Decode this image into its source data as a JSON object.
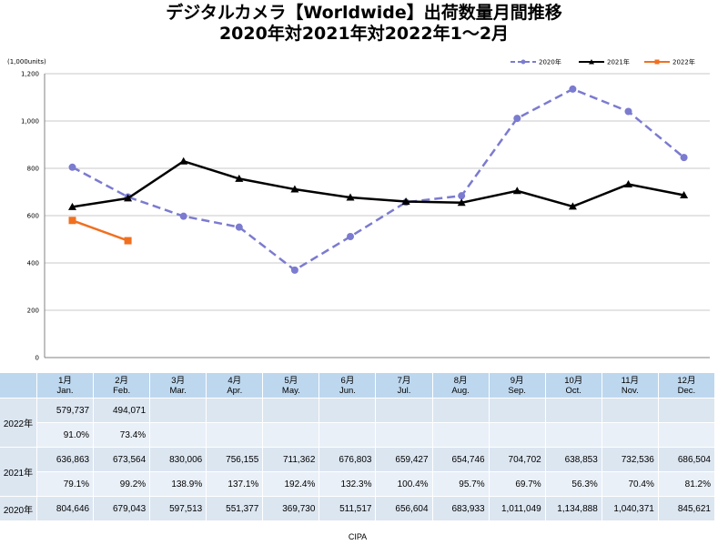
{
  "title_line1": "デジタルカメラ【Worldwide】出荷数量月間推移",
  "title_line2": "2020年対2021年対2022年1～2月",
  "footer": "CIPA",
  "table": {
    "row_labels": [
      "2022年",
      "2021年",
      "2020年"
    ]
  },
  "chart_data": {
    "type": "line",
    "title": "デジタルカメラ【Worldwide】出荷数量月間推移",
    "subtitle": "2020年対2021年対2022年1～2月",
    "unit_label": "(1,000units)",
    "ylim": [
      0,
      1200
    ],
    "yticks": [
      "0",
      "200",
      "400",
      "600",
      "800",
      "1,000",
      "1,200"
    ],
    "ytick_values": [
      0,
      200,
      400,
      600,
      800,
      1000,
      1200
    ],
    "grid": true,
    "legend_position": "top-right",
    "categories_jp": [
      "1月",
      "2月",
      "3月",
      "4月",
      "5月",
      "6月",
      "7月",
      "8月",
      "9月",
      "10月",
      "11月",
      "12月"
    ],
    "categories_en": [
      "Jan.",
      "Feb.",
      "Mar.",
      "Apr.",
      "May.",
      "Jun.",
      "Jul.",
      "Aug.",
      "Sep.",
      "Oct.",
      "Nov.",
      "Dec."
    ],
    "series": [
      {
        "name": "2020年",
        "color": "#7b7bd0",
        "style": "dashed",
        "marker": "circle",
        "values": [
          804.646,
          679.043,
          597.513,
          551.377,
          369.73,
          511.517,
          656.604,
          683.933,
          1011.049,
          1134.888,
          1040.371,
          845.621
        ],
        "labels": [
          "804,646",
          "679,043",
          "597,513",
          "551,377",
          "369,730",
          "511,517",
          "656,604",
          "683,933",
          "1,011,049",
          "1,134,888",
          "1,040,371",
          "845,621"
        ]
      },
      {
        "name": "2021年",
        "color": "#000000",
        "style": "solid",
        "marker": "triangle",
        "values": [
          636.863,
          673.564,
          830.006,
          756.155,
          711.362,
          676.803,
          659.427,
          654.746,
          704.702,
          638.853,
          732.536,
          686.504
        ],
        "labels": [
          "636,863",
          "673,564",
          "830,006",
          "756,155",
          "711,362",
          "676,803",
          "659,427",
          "654,746",
          "704,702",
          "638,853",
          "732,536",
          "686,504"
        ],
        "yoy": [
          "79.1%",
          "99.2%",
          "138.9%",
          "137.1%",
          "192.4%",
          "132.3%",
          "100.4%",
          "95.7%",
          "69.7%",
          "56.3%",
          "70.4%",
          "81.2%"
        ]
      },
      {
        "name": "2022年",
        "color": "#f07020",
        "style": "solid",
        "marker": "square",
        "values": [
          579.737,
          494.071
        ],
        "labels": [
          "579,737",
          "494,071"
        ],
        "yoy": [
          "91.0%",
          "73.4%"
        ]
      }
    ]
  }
}
